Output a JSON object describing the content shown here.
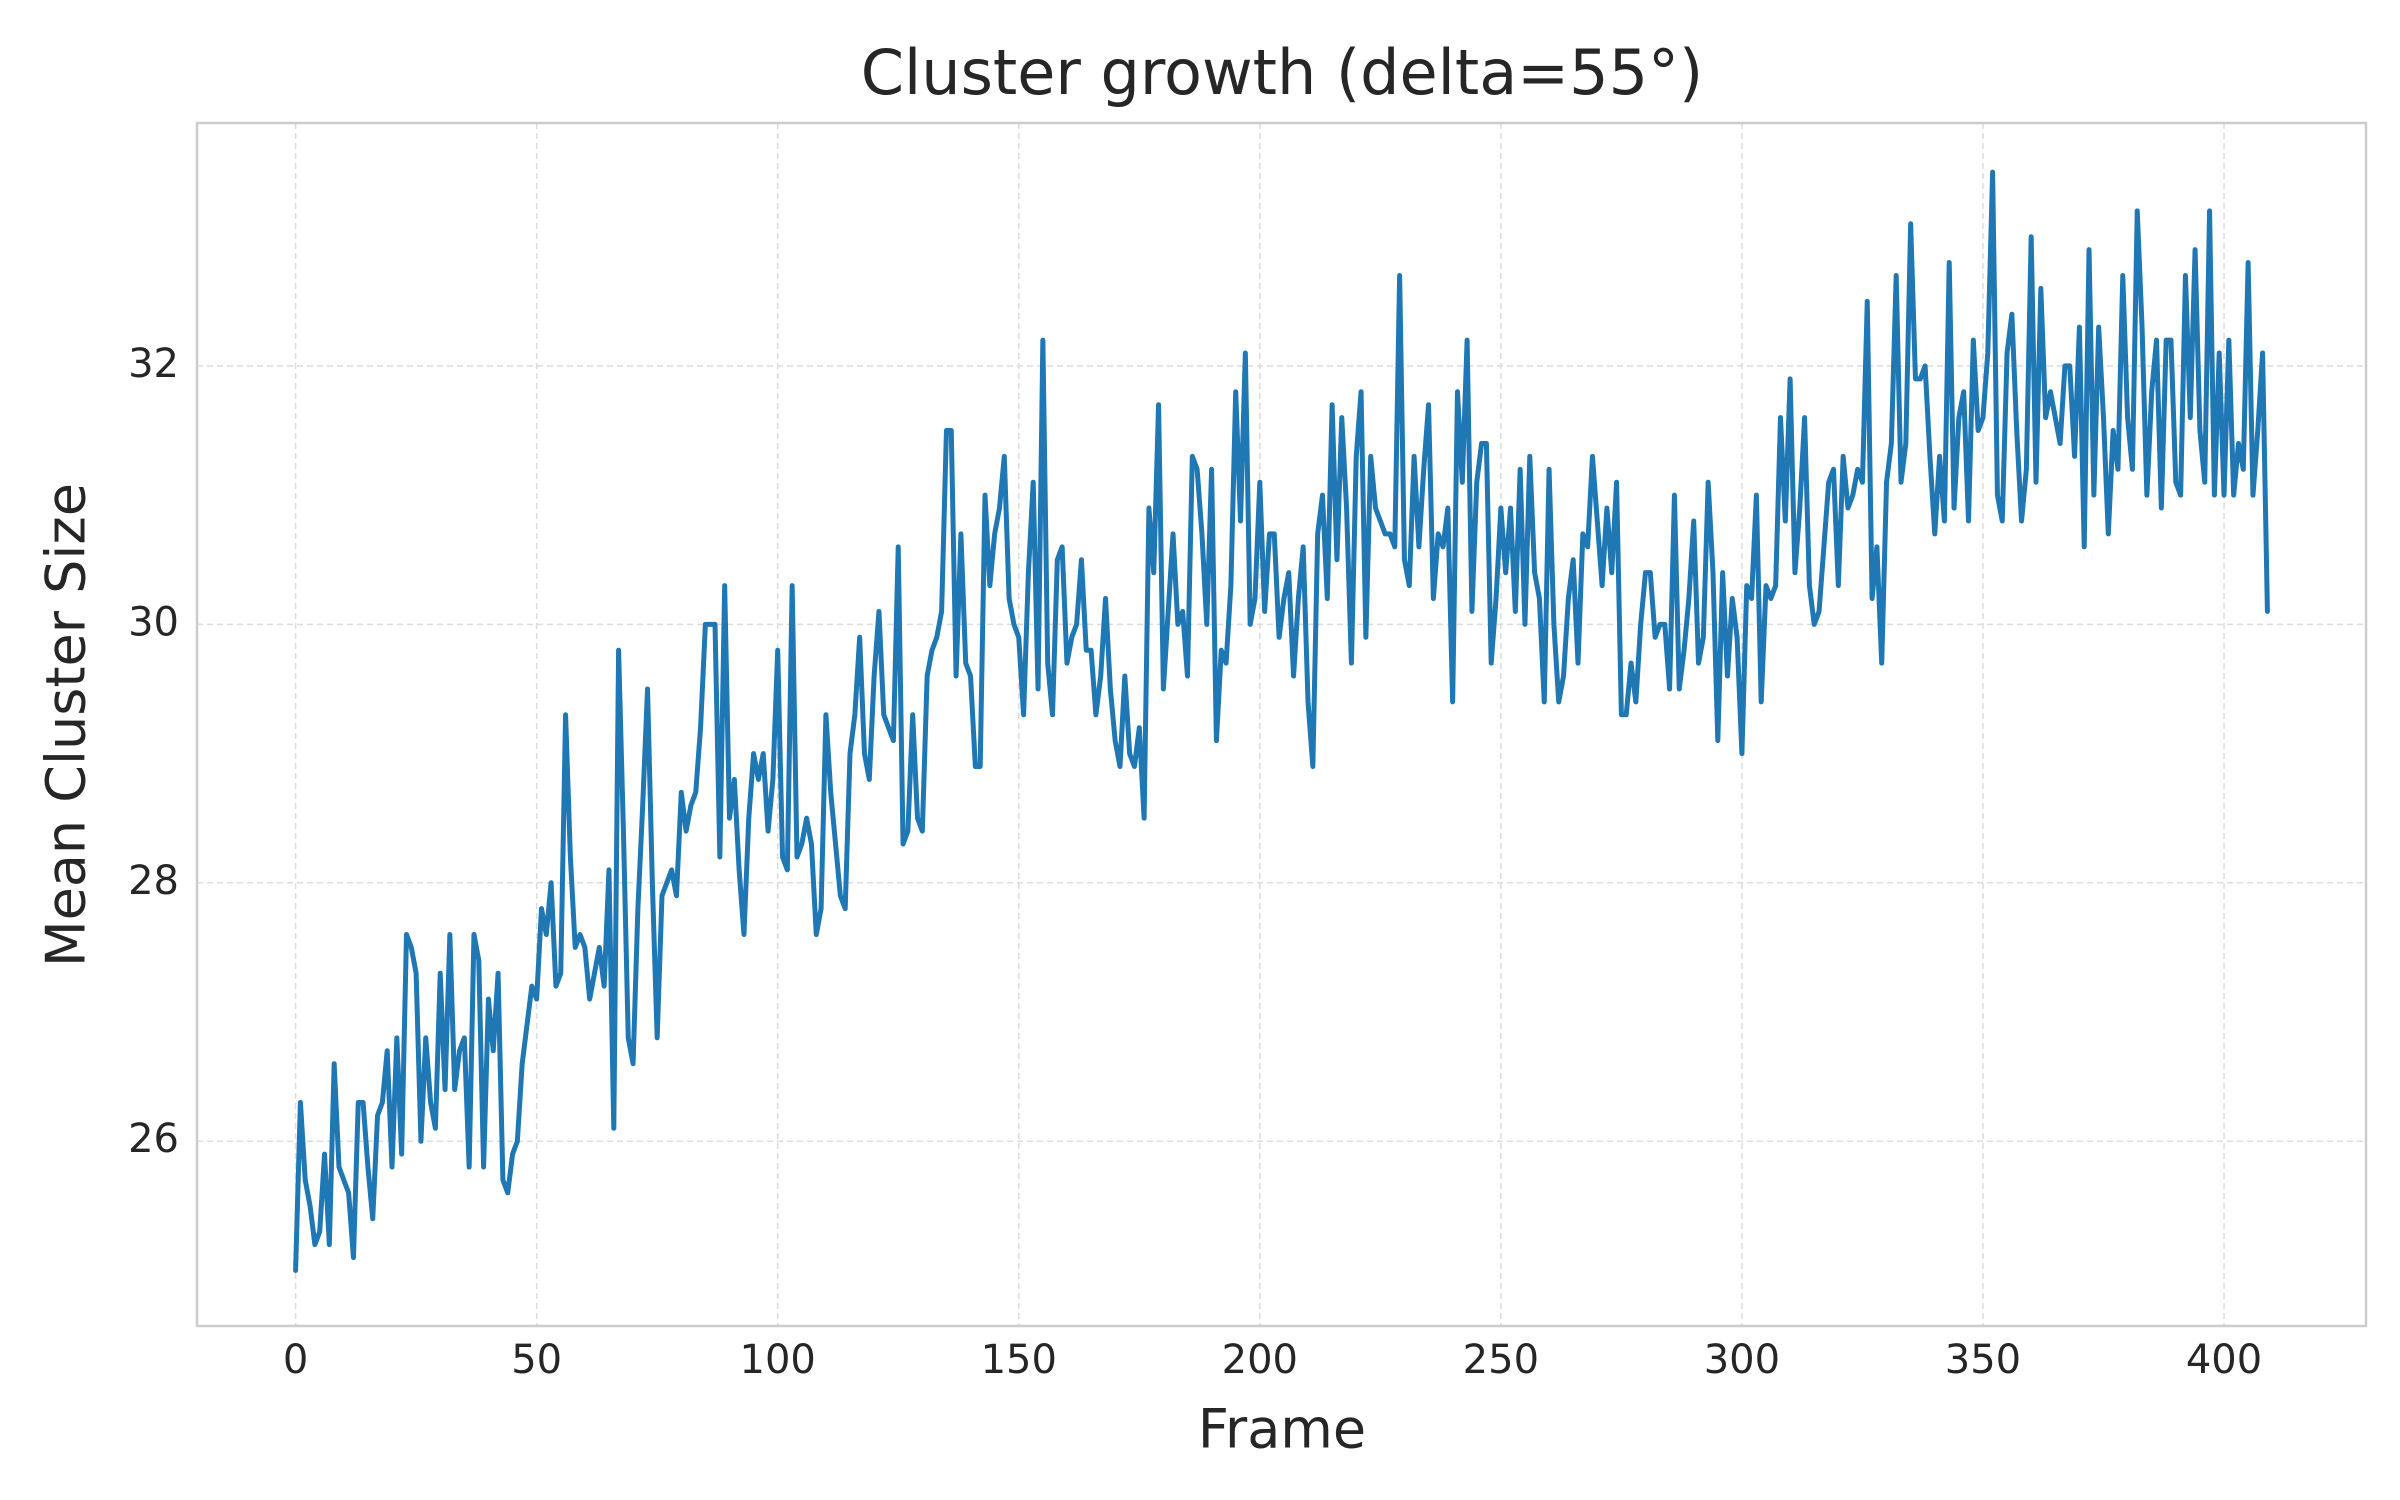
{
  "chart_data": {
    "type": "line",
    "title": "Cluster growth (delta=55°)",
    "x_label": "Frame",
    "y_label": "Mean Cluster Size",
    "color": "#1f77b4",
    "grid": true,
    "xlim": [
      -20.45,
      429.45
    ],
    "ylim": [
      24.57,
      33.88
    ],
    "xticks": [
      0,
      50,
      100,
      150,
      200,
      250,
      300,
      350,
      400
    ],
    "yticks": [
      26,
      28,
      30,
      32
    ],
    "x": [
      0,
      1,
      2,
      3,
      4,
      5,
      6,
      7,
      8,
      9,
      10,
      11,
      12,
      13,
      14,
      15,
      16,
      17,
      18,
      19,
      20,
      21,
      22,
      23,
      24,
      25,
      26,
      27,
      28,
      29,
      30,
      31,
      32,
      33,
      34,
      35,
      36,
      37,
      38,
      39,
      40,
      41,
      42,
      43,
      44,
      45,
      46,
      47,
      48,
      49,
      50,
      51,
      52,
      53,
      54,
      55,
      56,
      57,
      58,
      59,
      60,
      61,
      62,
      63,
      64,
      65,
      66,
      67,
      68,
      69,
      70,
      71,
      72,
      73,
      74,
      75,
      76,
      77,
      78,
      79,
      80,
      81,
      82,
      83,
      84,
      85,
      86,
      87,
      88,
      89,
      90,
      91,
      92,
      93,
      94,
      95,
      96,
      97,
      98,
      99,
      100,
      101,
      102,
      103,
      104,
      105,
      106,
      107,
      108,
      109,
      110,
      111,
      112,
      113,
      114,
      115,
      116,
      117,
      118,
      119,
      120,
      121,
      122,
      123,
      124,
      125,
      126,
      127,
      128,
      129,
      130,
      131,
      132,
      133,
      134,
      135,
      136,
      137,
      138,
      139,
      140,
      141,
      142,
      143,
      144,
      145,
      146,
      147,
      148,
      149,
      150,
      151,
      152,
      153,
      154,
      155,
      156,
      157,
      158,
      159,
      160,
      161,
      162,
      163,
      164,
      165,
      166,
      167,
      168,
      169,
      170,
      171,
      172,
      173,
      174,
      175,
      176,
      177,
      178,
      179,
      180,
      181,
      182,
      183,
      184,
      185,
      186,
      187,
      188,
      189,
      190,
      191,
      192,
      193,
      194,
      195,
      196,
      197,
      198,
      199,
      200,
      201,
      202,
      203,
      204,
      205,
      206,
      207,
      208,
      209,
      210,
      211,
      212,
      213,
      214,
      215,
      216,
      217,
      218,
      219,
      220,
      221,
      222,
      223,
      224,
      225,
      226,
      227,
      228,
      229,
      230,
      231,
      232,
      233,
      234,
      235,
      236,
      237,
      238,
      239,
      240,
      241,
      242,
      243,
      244,
      245,
      246,
      247,
      248,
      249,
      250,
      251,
      252,
      253,
      254,
      255,
      256,
      257,
      258,
      259,
      260,
      261,
      262,
      263,
      264,
      265,
      266,
      267,
      268,
      269,
      270,
      271,
      272,
      273,
      274,
      275,
      276,
      277,
      278,
      279,
      280,
      281,
      282,
      283,
      284,
      285,
      286,
      287,
      288,
      289,
      290,
      291,
      292,
      293,
      294,
      295,
      296,
      297,
      298,
      299,
      300,
      301,
      302,
      303,
      304,
      305,
      306,
      307,
      308,
      309,
      310,
      311,
      312,
      313,
      314,
      315,
      316,
      317,
      318,
      319,
      320,
      321,
      322,
      323,
      324,
      325,
      326,
      327,
      328,
      329,
      330,
      331,
      332,
      333,
      334,
      335,
      336,
      337,
      338,
      339,
      340,
      341,
      342,
      343,
      344,
      345,
      346,
      347,
      348,
      349,
      350,
      351,
      352,
      353,
      354,
      355,
      356,
      357,
      358,
      359,
      360,
      361,
      362,
      363,
      364,
      365,
      366,
      367,
      368,
      369,
      370,
      371,
      372,
      373,
      374,
      375,
      376,
      377,
      378,
      379,
      380,
      381,
      382,
      383,
      384,
      385,
      386,
      387,
      388,
      389,
      390,
      391,
      392,
      393,
      394,
      395,
      396,
      397,
      398,
      399,
      400,
      401,
      402,
      403,
      404,
      405,
      406,
      407,
      408,
      409
    ],
    "values": [
      25.0,
      26.3,
      25.7,
      25.5,
      25.2,
      25.3,
      25.9,
      25.2,
      26.6,
      25.8,
      25.7,
      25.6,
      25.1,
      26.3,
      26.3,
      25.8,
      25.4,
      26.2,
      26.3,
      26.7,
      25.8,
      26.8,
      25.9,
      27.6,
      27.5,
      27.3,
      26.0,
      26.8,
      26.3,
      26.1,
      27.3,
      26.4,
      27.6,
      26.4,
      26.7,
      26.8,
      25.8,
      27.6,
      27.4,
      25.8,
      27.1,
      26.7,
      27.3,
      25.7,
      25.6,
      25.9,
      26.0,
      26.6,
      26.9,
      27.2,
      27.1,
      27.8,
      27.6,
      28.0,
      27.2,
      27.3,
      29.3,
      28.2,
      27.5,
      27.6,
      27.5,
      27.1,
      27.3,
      27.5,
      27.2,
      28.1,
      26.1,
      29.8,
      28.4,
      26.8,
      26.6,
      27.8,
      28.6,
      29.5,
      28.0,
      26.8,
      27.9,
      28.0,
      28.1,
      27.9,
      28.7,
      28.4,
      28.6,
      28.7,
      29.2,
      30.0,
      30.0,
      30.0,
      28.2,
      30.3,
      28.5,
      28.8,
      28.1,
      27.6,
      28.5,
      29.0,
      28.8,
      29.0,
      28.4,
      28.8,
      29.8,
      28.2,
      28.1,
      30.3,
      28.2,
      28.3,
      28.5,
      28.3,
      27.6,
      27.8,
      29.3,
      28.7,
      28.3,
      27.9,
      27.8,
      29.0,
      29.3,
      29.9,
      29.0,
      28.8,
      29.6,
      30.1,
      29.3,
      29.2,
      29.1,
      30.6,
      28.3,
      28.4,
      29.3,
      28.5,
      28.4,
      29.6,
      29.8,
      29.9,
      30.1,
      31.5,
      31.5,
      29.6,
      30.7,
      29.7,
      29.6,
      28.9,
      28.9,
      31.0,
      30.3,
      30.7,
      30.9,
      31.3,
      30.2,
      30.0,
      29.9,
      29.3,
      30.4,
      31.1,
      29.5,
      32.2,
      29.7,
      29.3,
      30.5,
      30.6,
      29.7,
      29.9,
      30.0,
      30.5,
      29.8,
      29.8,
      29.3,
      29.6,
      30.2,
      29.5,
      29.1,
      28.9,
      29.6,
      29.0,
      28.9,
      29.2,
      28.5,
      30.9,
      30.4,
      31.7,
      29.5,
      30.1,
      30.7,
      30.0,
      30.1,
      29.6,
      31.3,
      31.2,
      30.7,
      30.0,
      31.2,
      29.1,
      29.8,
      29.7,
      30.3,
      31.8,
      30.8,
      32.1,
      30.0,
      30.2,
      31.1,
      30.1,
      30.7,
      30.7,
      29.9,
      30.2,
      30.4,
      29.6,
      30.2,
      30.6,
      29.4,
      28.9,
      30.7,
      31.0,
      30.2,
      31.7,
      30.5,
      31.6,
      30.9,
      29.7,
      31.3,
      31.8,
      29.9,
      31.3,
      30.9,
      30.8,
      30.7,
      30.7,
      30.6,
      32.7,
      30.5,
      30.3,
      31.3,
      30.6,
      31.2,
      31.7,
      30.2,
      30.7,
      30.6,
      30.9,
      29.4,
      31.8,
      31.1,
      32.2,
      30.1,
      31.1,
      31.4,
      31.4,
      29.7,
      30.2,
      30.9,
      30.4,
      30.9,
      30.1,
      31.2,
      30.0,
      31.3,
      30.4,
      30.2,
      29.4,
      31.2,
      30.0,
      29.4,
      29.6,
      30.2,
      30.5,
      29.7,
      30.7,
      30.6,
      31.3,
      30.8,
      30.3,
      30.9,
      30.4,
      31.1,
      29.3,
      29.3,
      29.7,
      29.4,
      30.0,
      30.4,
      30.4,
      29.9,
      30.0,
      30.0,
      29.5,
      31.0,
      29.5,
      29.8,
      30.2,
      30.8,
      29.7,
      29.9,
      31.1,
      30.4,
      29.1,
      30.4,
      29.6,
      30.2,
      29.9,
      29.0,
      30.3,
      30.2,
      31.0,
      29.4,
      30.3,
      30.2,
      30.3,
      31.6,
      30.8,
      31.9,
      30.4,
      30.9,
      31.6,
      30.3,
      30.0,
      30.1,
      30.6,
      31.1,
      31.2,
      30.3,
      31.3,
      30.9,
      31.0,
      31.2,
      31.1,
      32.5,
      30.2,
      30.6,
      29.7,
      31.1,
      31.4,
      32.7,
      31.1,
      31.4,
      33.1,
      31.9,
      31.9,
      32.0,
      31.3,
      30.7,
      31.3,
      30.8,
      32.8,
      30.9,
      31.6,
      31.8,
      30.8,
      32.2,
      31.5,
      31.6,
      32.1,
      33.5,
      31.0,
      30.8,
      32.1,
      32.4,
      31.5,
      30.8,
      31.2,
      33.0,
      31.1,
      32.6,
      31.6,
      31.8,
      31.6,
      31.4,
      32.0,
      32.0,
      31.3,
      32.3,
      30.6,
      32.9,
      31.0,
      32.3,
      31.6,
      30.7,
      31.5,
      31.2,
      32.7,
      31.6,
      31.2,
      33.2,
      32.3,
      31.0,
      31.8,
      32.2,
      30.9,
      32.2,
      32.2,
      31.1,
      31.0,
      32.7,
      31.6,
      32.9,
      31.5,
      31.1,
      33.2,
      31.0,
      32.1,
      31.0,
      32.2,
      31.0,
      31.4,
      31.2,
      32.8,
      31.0,
      31.5,
      32.1,
      30.1
    ]
  }
}
